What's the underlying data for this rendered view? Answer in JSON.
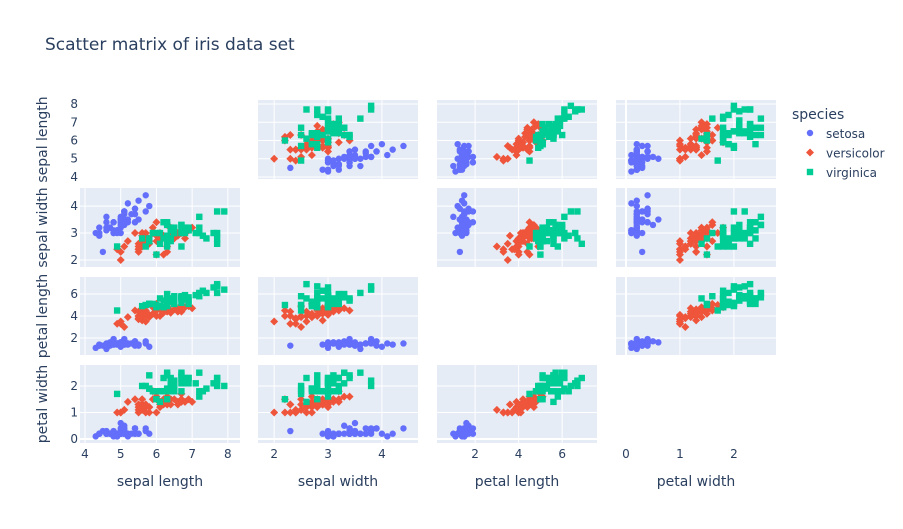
{
  "chart_data": {
    "type": "scatter",
    "title": "Scatter matrix of iris data set",
    "dimensions": [
      "sepal length",
      "sepal width",
      "petal length",
      "petal width"
    ],
    "diagonal_visible": false,
    "axis_ranges": {
      "sepal length": {
        "x": [
          3.86,
          8.34
        ],
        "y": [
          3.89,
          8.22
        ],
        "ticks": [
          4,
          5,
          6,
          7,
          8
        ]
      },
      "sepal width": {
        "x": [
          1.7,
          4.67
        ],
        "y": [
          1.74,
          4.67
        ],
        "ticks": [
          2,
          3,
          4
        ]
      },
      "petal length": {
        "x": [
          0.25,
          7.6
        ],
        "y": [
          0.45,
          7.55
        ],
        "ticks": [
          2,
          4,
          6
        ]
      },
      "petal width": {
        "x": [
          -0.185,
          2.78
        ],
        "y": [
          -0.15,
          2.79
        ],
        "ticks": [
          0,
          1,
          2
        ]
      }
    },
    "grid": true,
    "legend": {
      "title": "species",
      "placement": "right"
    },
    "series": [
      {
        "name": "setosa",
        "color": "#636efa",
        "symbol": "circle",
        "points": [
          [
            5.1,
            3.5,
            1.4,
            0.2
          ],
          [
            4.9,
            3.0,
            1.4,
            0.2
          ],
          [
            4.7,
            3.2,
            1.3,
            0.2
          ],
          [
            4.6,
            3.1,
            1.5,
            0.2
          ],
          [
            5.0,
            3.6,
            1.4,
            0.2
          ],
          [
            5.4,
            3.9,
            1.7,
            0.4
          ],
          [
            4.6,
            3.4,
            1.4,
            0.3
          ],
          [
            5.0,
            3.4,
            1.5,
            0.2
          ],
          [
            4.4,
            2.9,
            1.4,
            0.2
          ],
          [
            4.9,
            3.1,
            1.5,
            0.1
          ],
          [
            5.4,
            3.7,
            1.5,
            0.2
          ],
          [
            4.8,
            3.4,
            1.6,
            0.2
          ],
          [
            4.8,
            3.0,
            1.4,
            0.1
          ],
          [
            4.3,
            3.0,
            1.1,
            0.1
          ],
          [
            5.8,
            4.0,
            1.2,
            0.2
          ],
          [
            5.7,
            4.4,
            1.5,
            0.4
          ],
          [
            5.4,
            3.9,
            1.3,
            0.4
          ],
          [
            5.1,
            3.5,
            1.4,
            0.3
          ],
          [
            5.7,
            3.8,
            1.7,
            0.3
          ],
          [
            5.1,
            3.8,
            1.5,
            0.3
          ],
          [
            5.4,
            3.4,
            1.7,
            0.2
          ],
          [
            5.1,
            3.7,
            1.5,
            0.4
          ],
          [
            4.6,
            3.6,
            1.0,
            0.2
          ],
          [
            5.1,
            3.3,
            1.7,
            0.5
          ],
          [
            4.8,
            3.4,
            1.9,
            0.2
          ],
          [
            5.0,
            3.0,
            1.6,
            0.2
          ],
          [
            5.0,
            3.4,
            1.6,
            0.4
          ],
          [
            5.2,
            3.5,
            1.5,
            0.2
          ],
          [
            5.2,
            3.4,
            1.4,
            0.2
          ],
          [
            4.7,
            3.2,
            1.6,
            0.2
          ],
          [
            4.8,
            3.1,
            1.6,
            0.2
          ],
          [
            5.4,
            3.4,
            1.5,
            0.4
          ],
          [
            5.2,
            4.1,
            1.5,
            0.1
          ],
          [
            5.5,
            4.2,
            1.4,
            0.2
          ],
          [
            4.9,
            3.1,
            1.5,
            0.1
          ],
          [
            5.0,
            3.2,
            1.2,
            0.2
          ],
          [
            5.5,
            3.5,
            1.3,
            0.2
          ],
          [
            4.9,
            3.1,
            1.5,
            0.1
          ],
          [
            4.4,
            3.0,
            1.3,
            0.2
          ],
          [
            5.1,
            3.4,
            1.5,
            0.2
          ],
          [
            5.0,
            3.5,
            1.3,
            0.3
          ],
          [
            4.5,
            2.3,
            1.3,
            0.3
          ],
          [
            4.4,
            3.2,
            1.3,
            0.2
          ],
          [
            5.0,
            3.5,
            1.6,
            0.6
          ],
          [
            5.1,
            3.8,
            1.9,
            0.4
          ],
          [
            4.8,
            3.0,
            1.4,
            0.3
          ],
          [
            5.1,
            3.8,
            1.6,
            0.2
          ],
          [
            4.6,
            3.2,
            1.4,
            0.2
          ],
          [
            5.3,
            3.7,
            1.5,
            0.2
          ],
          [
            5.0,
            3.3,
            1.4,
            0.2
          ]
        ]
      },
      {
        "name": "versicolor",
        "color": "#EF553B",
        "symbol": "diamond",
        "points": [
          [
            7.0,
            3.2,
            4.7,
            1.4
          ],
          [
            6.4,
            3.2,
            4.5,
            1.5
          ],
          [
            6.9,
            3.1,
            4.9,
            1.5
          ],
          [
            5.5,
            2.3,
            4.0,
            1.3
          ],
          [
            6.5,
            2.8,
            4.6,
            1.5
          ],
          [
            5.7,
            2.8,
            4.5,
            1.3
          ],
          [
            6.3,
            3.3,
            4.7,
            1.6
          ],
          [
            4.9,
            2.4,
            3.3,
            1.0
          ],
          [
            6.6,
            2.9,
            4.6,
            1.3
          ],
          [
            5.2,
            2.7,
            3.9,
            1.4
          ],
          [
            5.0,
            2.0,
            3.5,
            1.0
          ],
          [
            5.9,
            3.0,
            4.2,
            1.5
          ],
          [
            6.0,
            2.2,
            4.0,
            1.0
          ],
          [
            6.1,
            2.9,
            4.7,
            1.4
          ],
          [
            5.6,
            2.9,
            3.6,
            1.3
          ],
          [
            6.7,
            3.1,
            4.4,
            1.4
          ],
          [
            5.6,
            3.0,
            4.5,
            1.5
          ],
          [
            5.8,
            2.7,
            4.1,
            1.0
          ],
          [
            6.2,
            2.2,
            4.5,
            1.5
          ],
          [
            5.6,
            2.5,
            3.9,
            1.1
          ],
          [
            5.9,
            3.2,
            4.8,
            1.8
          ],
          [
            6.1,
            2.8,
            4.0,
            1.3
          ],
          [
            6.3,
            2.5,
            4.9,
            1.5
          ],
          [
            6.1,
            2.8,
            4.7,
            1.2
          ],
          [
            6.4,
            2.9,
            4.3,
            1.3
          ],
          [
            6.6,
            3.0,
            4.4,
            1.4
          ],
          [
            6.8,
            2.8,
            4.8,
            1.4
          ],
          [
            6.7,
            3.0,
            5.0,
            1.7
          ],
          [
            6.0,
            2.9,
            4.5,
            1.5
          ],
          [
            5.7,
            2.6,
            3.5,
            1.0
          ],
          [
            5.5,
            2.4,
            3.8,
            1.1
          ],
          [
            5.5,
            2.4,
            3.7,
            1.0
          ],
          [
            5.8,
            2.7,
            3.9,
            1.2
          ],
          [
            6.0,
            2.7,
            5.1,
            1.6
          ],
          [
            5.4,
            3.0,
            4.5,
            1.5
          ],
          [
            6.0,
            3.4,
            4.5,
            1.6
          ],
          [
            6.7,
            3.1,
            4.7,
            1.5
          ],
          [
            6.3,
            2.3,
            4.4,
            1.3
          ],
          [
            5.6,
            3.0,
            4.1,
            1.3
          ],
          [
            5.5,
            2.5,
            4.0,
            1.3
          ],
          [
            5.5,
            2.6,
            4.4,
            1.2
          ],
          [
            6.1,
            3.0,
            4.6,
            1.4
          ],
          [
            5.8,
            2.6,
            4.0,
            1.2
          ],
          [
            5.0,
            2.3,
            3.3,
            1.0
          ],
          [
            5.6,
            2.7,
            4.2,
            1.3
          ],
          [
            5.7,
            3.0,
            4.2,
            1.2
          ],
          [
            5.7,
            2.9,
            4.2,
            1.3
          ],
          [
            6.2,
            2.9,
            4.3,
            1.3
          ],
          [
            5.1,
            2.5,
            3.0,
            1.1
          ],
          [
            5.7,
            2.8,
            4.1,
            1.3
          ]
        ]
      },
      {
        "name": "virginica",
        "color": "#00cc96",
        "symbol": "square",
        "points": [
          [
            6.3,
            3.3,
            6.0,
            2.5
          ],
          [
            5.8,
            2.7,
            5.1,
            1.9
          ],
          [
            7.1,
            3.0,
            5.9,
            2.1
          ],
          [
            6.3,
            2.9,
            5.6,
            1.8
          ],
          [
            6.5,
            3.0,
            5.8,
            2.2
          ],
          [
            7.6,
            3.0,
            6.6,
            2.1
          ],
          [
            4.9,
            2.5,
            4.5,
            1.7
          ],
          [
            7.3,
            2.9,
            6.3,
            1.8
          ],
          [
            6.7,
            2.5,
            5.8,
            1.8
          ],
          [
            7.2,
            3.6,
            6.1,
            2.5
          ],
          [
            6.5,
            3.2,
            5.1,
            2.0
          ],
          [
            6.4,
            2.7,
            5.3,
            1.9
          ],
          [
            6.8,
            3.0,
            5.5,
            2.1
          ],
          [
            5.7,
            2.5,
            5.0,
            2.0
          ],
          [
            5.8,
            2.8,
            5.1,
            2.4
          ],
          [
            6.4,
            3.2,
            5.3,
            2.3
          ],
          [
            6.5,
            3.0,
            5.5,
            1.8
          ],
          [
            7.7,
            3.8,
            6.7,
            2.2
          ],
          [
            7.7,
            2.6,
            6.9,
            2.3
          ],
          [
            6.0,
            2.2,
            5.0,
            1.5
          ],
          [
            6.9,
            3.2,
            5.7,
            2.3
          ],
          [
            5.6,
            2.8,
            4.9,
            2.0
          ],
          [
            7.7,
            2.8,
            6.7,
            2.0
          ],
          [
            6.3,
            2.7,
            4.9,
            1.8
          ],
          [
            6.7,
            3.3,
            5.7,
            2.1
          ],
          [
            7.2,
            3.2,
            6.0,
            1.8
          ],
          [
            6.2,
            2.8,
            4.8,
            1.8
          ],
          [
            6.1,
            3.0,
            4.9,
            1.8
          ],
          [
            6.4,
            2.8,
            5.6,
            2.1
          ],
          [
            7.2,
            3.0,
            5.8,
            1.6
          ],
          [
            7.4,
            2.8,
            6.1,
            1.9
          ],
          [
            7.9,
            3.8,
            6.4,
            2.0
          ],
          [
            6.4,
            2.8,
            5.6,
            2.2
          ],
          [
            6.3,
            2.8,
            5.1,
            1.5
          ],
          [
            6.1,
            2.6,
            5.6,
            1.4
          ],
          [
            7.7,
            3.0,
            6.1,
            2.3
          ],
          [
            6.3,
            3.4,
            5.6,
            2.4
          ],
          [
            6.4,
            3.1,
            5.5,
            1.8
          ],
          [
            6.0,
            3.0,
            4.8,
            1.8
          ],
          [
            6.9,
            3.1,
            5.4,
            2.1
          ],
          [
            6.7,
            3.1,
            5.6,
            2.4
          ],
          [
            6.9,
            3.1,
            5.1,
            2.3
          ],
          [
            5.8,
            2.7,
            5.1,
            1.9
          ],
          [
            6.8,
            3.2,
            5.9,
            2.3
          ],
          [
            6.7,
            3.3,
            5.7,
            2.5
          ],
          [
            6.7,
            3.0,
            5.2,
            2.3
          ],
          [
            6.3,
            2.5,
            5.0,
            1.9
          ],
          [
            6.5,
            3.0,
            5.2,
            2.0
          ],
          [
            6.2,
            3.4,
            5.4,
            2.3
          ],
          [
            5.9,
            3.0,
            5.1,
            1.8
          ]
        ]
      }
    ]
  }
}
